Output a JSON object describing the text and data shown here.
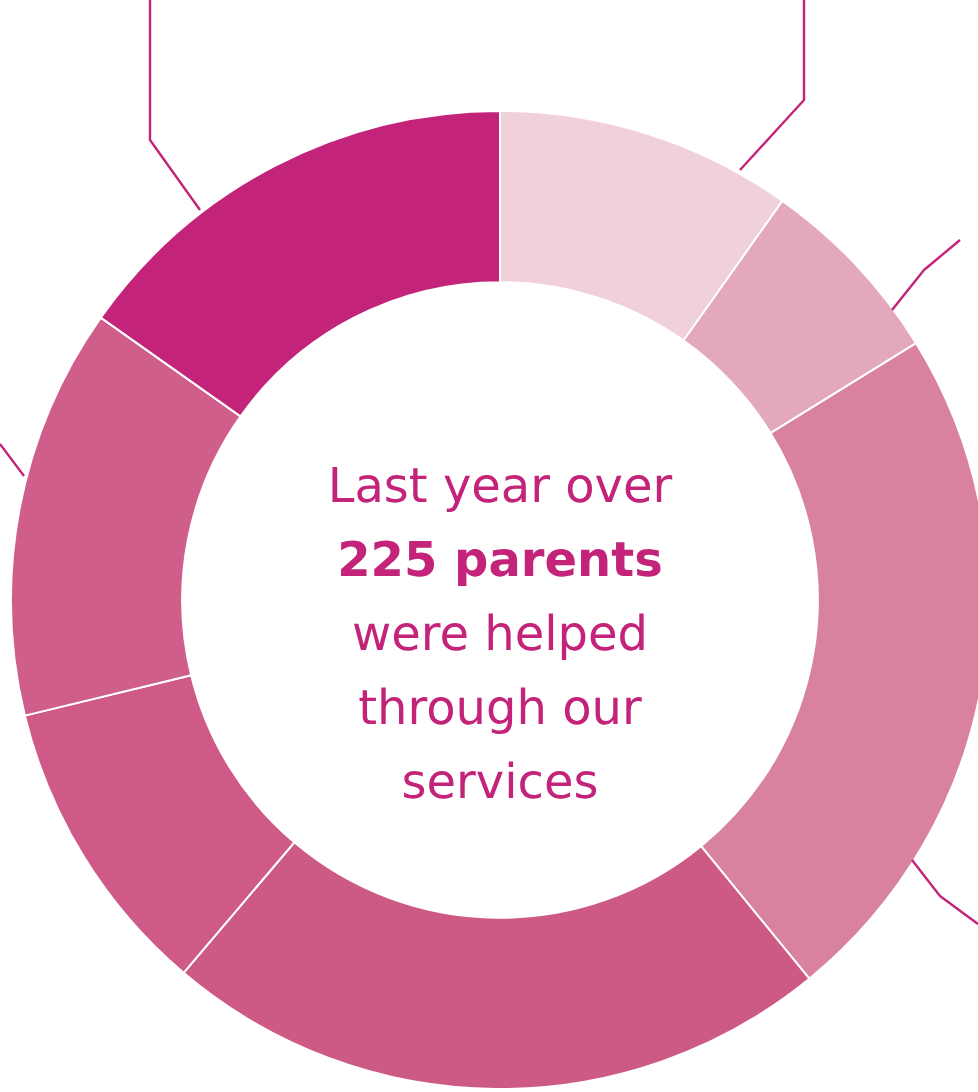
{
  "chart_data": {
    "type": "donut",
    "title": "Last year over 225 parents were helped through our services",
    "categories": [
      null,
      null,
      null,
      null,
      null,
      null,
      null
    ],
    "values": [
      9.8,
      6.4,
      22.9,
      22.1,
      10.0,
      13.6,
      15.2
    ],
    "colors": [
      "#f0d0da",
      "#e4a8bb",
      "#d8829f",
      "#cd5a85",
      "#cf5a87",
      "#d05e8a",
      "#c4237a"
    ],
    "legend": false
  }
}
